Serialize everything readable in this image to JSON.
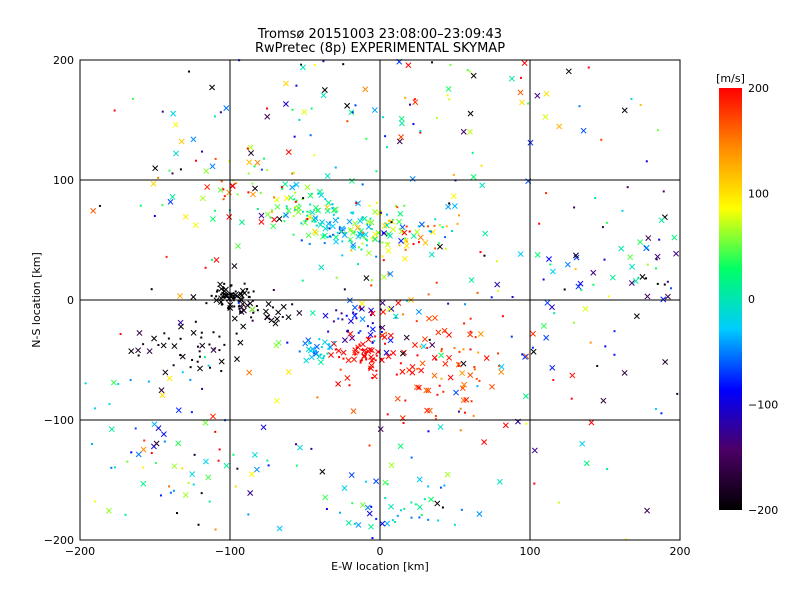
{
  "page": {
    "title_line1": "Tromsø 20151003 23:08:00–23:09:43",
    "title_line2": "RwPretec (8p) EXPERIMENTAL SKYMAP"
  },
  "chart_data": {
    "type": "scatter",
    "title": "Tromsø 20151003 23:08:00–23:09:43",
    "subtitle": "RwPretec (8p) EXPERIMENTAL SKYMAP",
    "xlabel": "E-W location [km]",
    "ylabel": "N-S location [km]",
    "xlim": [
      -200,
      200
    ],
    "ylim": [
      -200,
      200
    ],
    "xticks": [
      -200,
      -100,
      0,
      100,
      200
    ],
    "yticks": [
      -200,
      -100,
      0,
      100,
      200
    ],
    "xtick_labels": [
      "−200",
      "−100",
      "0",
      "100",
      "200"
    ],
    "ytick_labels": [
      "−200",
      "−100",
      "0",
      "100",
      "200"
    ],
    "grid": true,
    "marker_styles": [
      "cross",
      "dot"
    ],
    "colorbar": {
      "label": "[m/s]",
      "range": [
        -200,
        200
      ],
      "ticks": [
        200,
        100,
        0,
        -100,
        -200
      ],
      "tick_labels": [
        "200",
        "100",
        "0",
        "−100",
        "−200"
      ],
      "colormap": [
        "#000000",
        "#4b0066",
        "#0000ff",
        "#00ccff",
        "#00ff66",
        "#ffff00",
        "#ff8c00",
        "#ff0000"
      ]
    },
    "clusters": [
      {
        "x": -100,
        "y": 2,
        "sx": 6,
        "sy": 5,
        "n": 60,
        "v": -200,
        "vs": 5
      },
      {
        "x": -80,
        "y": -8,
        "sx": 14,
        "sy": 10,
        "n": 40,
        "v": -190,
        "vs": 15
      },
      {
        "x": -125,
        "y": -40,
        "sx": 20,
        "sy": 15,
        "n": 40,
        "v": -190,
        "vs": 15
      },
      {
        "x": -50,
        "y": 75,
        "sx": 12,
        "sy": 10,
        "n": 55,
        "v": 30,
        "vs": 30
      },
      {
        "x": -25,
        "y": 58,
        "sx": 15,
        "sy": 10,
        "n": 70,
        "v": -10,
        "vs": 35
      },
      {
        "x": 12,
        "y": 55,
        "sx": 18,
        "sy": 12,
        "n": 90,
        "v": 50,
        "vs": 70
      },
      {
        "x": -10,
        "y": -47,
        "sx": 9,
        "sy": 8,
        "n": 60,
        "v": 200,
        "vs": 5
      },
      {
        "x": -15,
        "y": -18,
        "sx": 14,
        "sy": 9,
        "n": 40,
        "v": -95,
        "vs": 25
      },
      {
        "x": -40,
        "y": -40,
        "sx": 6,
        "sy": 6,
        "n": 30,
        "v": -30,
        "vs": 20
      },
      {
        "x": 40,
        "y": -55,
        "sx": 28,
        "sy": 25,
        "n": 100,
        "v": 185,
        "vs": 20
      },
      {
        "x": -80,
        "y": 95,
        "sx": 30,
        "sy": 15,
        "n": 60,
        "v": 70,
        "vs": 120
      },
      {
        "x": 0,
        "y": 170,
        "sx": 80,
        "sy": 25,
        "n": 90,
        "v": 0,
        "vs": 150
      },
      {
        "x": 10,
        "y": -165,
        "sx": 25,
        "sy": 20,
        "n": 50,
        "v": -20,
        "vs": 40
      },
      {
        "x": -140,
        "y": -140,
        "sx": 40,
        "sy": 40,
        "n": 70,
        "v": 0,
        "vs": 100
      },
      {
        "x": 150,
        "y": 20,
        "sx": 40,
        "sy": 30,
        "n": 60,
        "v": -100,
        "vs": 100
      },
      {
        "x": 20,
        "y": 0,
        "sx": 120,
        "sy": 110,
        "n": 220,
        "v": 0,
        "vs": 150
      }
    ]
  }
}
